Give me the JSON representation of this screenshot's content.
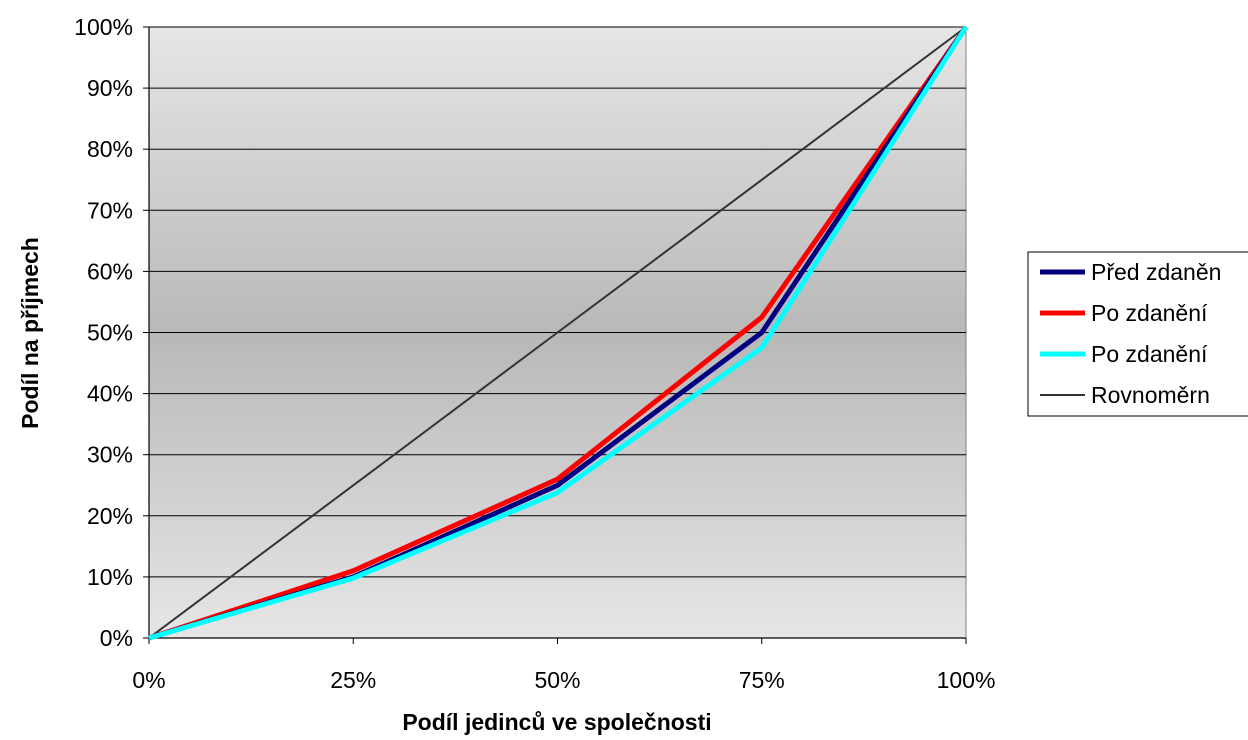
{
  "chart_data": {
    "type": "line",
    "title": "",
    "xlabel": "Podíl jedinců ve společnosti",
    "ylabel": "Podíl na příjmech",
    "x": [
      0,
      25,
      50,
      75,
      100
    ],
    "xlim": [
      0,
      100
    ],
    "ylim": [
      0,
      100
    ],
    "x_ticks": [
      "0%",
      "25%",
      "50%",
      "75%",
      "100%"
    ],
    "y_ticks": [
      "0%",
      "10%",
      "20%",
      "30%",
      "40%",
      "50%",
      "60%",
      "70%",
      "80%",
      "90%",
      "100%"
    ],
    "grid": true,
    "legend_position": "right",
    "series": [
      {
        "name": "Před zdaněn",
        "color": "#000080",
        "values": [
          0,
          10,
          25,
          50,
          100
        ]
      },
      {
        "name": "Po zdanění",
        "color": "#ff0000",
        "values": [
          0,
          11,
          26,
          52.5,
          100
        ]
      },
      {
        "name": "Po zdanění",
        "color": "#00ffff",
        "values": [
          0,
          9.8,
          23.8,
          47.5,
          100
        ]
      },
      {
        "name": "Rovnoměrn",
        "color": "#333333",
        "values": [
          0,
          25,
          50,
          75,
          100
        ]
      }
    ]
  }
}
